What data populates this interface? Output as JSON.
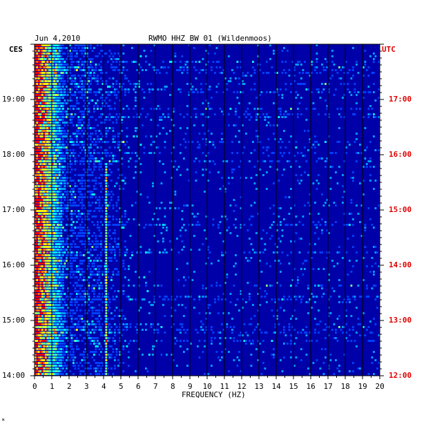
{
  "header": {
    "date": "Jun 4,2010",
    "station": "RWMO HHZ BW 01 (Wildenmoos)"
  },
  "left_zone_label": "CES",
  "right_zone_label": "UTC",
  "footer_mark": "*",
  "colors": {
    "background": "#0000a8",
    "grid": "#000000",
    "utc_label": "#e00000"
  },
  "chart_data": {
    "type": "heatmap",
    "xlabel": "FREQUENCY (HZ)",
    "x_ticks": [
      "0",
      "1",
      "2",
      "3",
      "4",
      "5",
      "6",
      "7",
      "8",
      "9",
      "10",
      "11",
      "12",
      "13",
      "14",
      "15",
      "16",
      "17",
      "18",
      "19",
      "20"
    ],
    "xlim": [
      0,
      20
    ],
    "left_time_ticks": [
      "19:00",
      "18:00",
      "17:00",
      "16:00",
      "15:00",
      "14:00"
    ],
    "right_time_ticks": [
      "17:00",
      "16:00",
      "15:00",
      "14:00",
      "13:00",
      "12:00"
    ],
    "time_range_utc": [
      "12:00",
      "18:00"
    ],
    "colormap": [
      "#0000a8",
      "#0040ff",
      "#00a0ff",
      "#00ffff",
      "#80ff80",
      "#ffff00",
      "#ff8000",
      "#ff0000"
    ],
    "features": [
      {
        "frequency_hz": 0.4,
        "description": "strong low-frequency energy",
        "intensity": 0.9
      },
      {
        "frequency_hz": 4.1,
        "description": "narrow spectral line",
        "intensity": 0.6
      }
    ]
  }
}
